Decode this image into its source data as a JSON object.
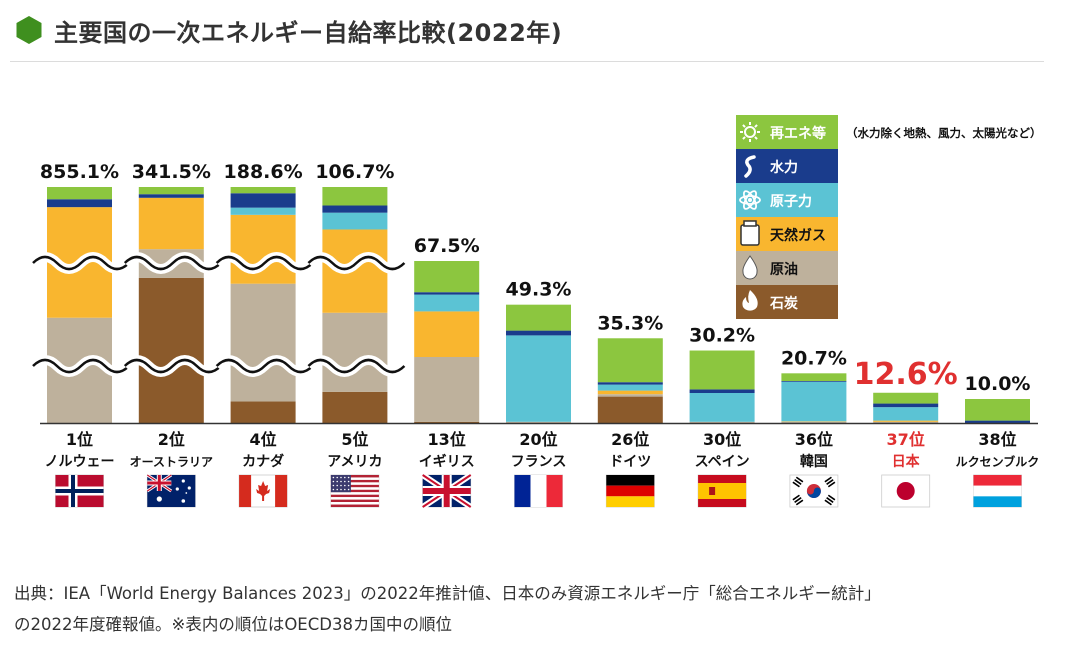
{
  "page": {
    "title": "主要国の一次エネルギー自給率比較(2022年)",
    "source_line1": "出典：IEA「World Energy Balances 2023」の2022年推計値、日本のみ資源エネルギー庁「総合エネルギー統計」",
    "source_line2": "の2022年度確報値。※表内の順位はOECD38カ国中の順位"
  },
  "chart_data": {
    "type": "bar",
    "stacked": true,
    "broken_axis": true,
    "unit": "%",
    "legend_position": "top-right",
    "legend": [
      {
        "key": "renewables",
        "label": "再エネ等",
        "note": "（水力除く地熱、風力、太陽光など）",
        "color": "#8cc63f",
        "icon": "sun-icon"
      },
      {
        "key": "hydro",
        "label": "水力",
        "color": "#1a3c8c",
        "icon": "water-icon"
      },
      {
        "key": "nuclear",
        "label": "原子力",
        "color": "#5bc3d4",
        "icon": "atom-icon"
      },
      {
        "key": "gas",
        "label": "天然ガス",
        "color": "#f9b62f",
        "icon": "gas-tank-icon"
      },
      {
        "key": "oil",
        "label": "原油",
        "color": "#beb19c",
        "icon": "oil-drop-icon"
      },
      {
        "key": "coal",
        "label": "石炭",
        "color": "#8b5a2b",
        "icon": "flame-icon"
      }
    ],
    "categories": [
      {
        "rank": "1位",
        "country": "ノルウェー",
        "total": 855.1,
        "total_label": "855.1%",
        "flag": "norway",
        "highlight": false,
        "components": {
          "coal": 0,
          "oil": 400,
          "gas": 420,
          "nuclear": 0,
          "hydro": 30,
          "renewables": 5.1
        }
      },
      {
        "rank": "2位",
        "country": "オーストラリア",
        "total": 341.5,
        "total_label": "341.5%",
        "flag": "australia",
        "highlight": false,
        "components": {
          "coal": 240,
          "oil": 12,
          "gas": 85,
          "nuclear": 0,
          "hydro": 1.5,
          "renewables": 3
        }
      },
      {
        "rank": "4位",
        "country": "カナダ",
        "total": 188.6,
        "total_label": "188.6%",
        "flag": "canada",
        "highlight": false,
        "components": {
          "coal": 9,
          "oil": 106,
          "gas": 62,
          "nuclear": 3,
          "hydro": 6,
          "renewables": 2.6
        }
      },
      {
        "rank": "5位",
        "country": "アメリカ",
        "total": 106.7,
        "total_label": "106.7%",
        "flag": "usa",
        "highlight": false,
        "components": {
          "coal": 13,
          "oil": 37,
          "gas": 39,
          "nuclear": 7,
          "hydro": 3,
          "renewables": 7.7
        }
      },
      {
        "rank": "13位",
        "country": "イギリス",
        "total": 67.5,
        "total_label": "67.5%",
        "flag": "uk",
        "highlight": false,
        "components": {
          "coal": 0.5,
          "oil": 27,
          "gas": 19,
          "nuclear": 7,
          "hydro": 1,
          "renewables": 13
        }
      },
      {
        "rank": "20位",
        "country": "フランス",
        "total": 49.3,
        "total_label": "49.3%",
        "flag": "france",
        "highlight": false,
        "components": {
          "coal": 0,
          "oil": 0.5,
          "gas": 0,
          "nuclear": 36,
          "hydro": 2,
          "renewables": 10.8
        }
      },
      {
        "rank": "26位",
        "country": "ドイツ",
        "total": 35.3,
        "total_label": "35.3%",
        "flag": "germany",
        "highlight": false,
        "components": {
          "coal": 11,
          "oil": 1,
          "gas": 1.5,
          "nuclear": 2.5,
          "hydro": 1,
          "renewables": 18.3
        }
      },
      {
        "rank": "30位",
        "country": "スペイン",
        "total": 30.2,
        "total_label": "30.2%",
        "flag": "spain",
        "highlight": false,
        "components": {
          "coal": 0,
          "oil": 0.5,
          "gas": 0,
          "nuclear": 12,
          "hydro": 1.5,
          "renewables": 16.2
        }
      },
      {
        "rank": "36位",
        "country": "韓国",
        "total": 20.7,
        "total_label": "20.7%",
        "flag": "korea",
        "highlight": false,
        "components": {
          "coal": 0,
          "oil": 0.5,
          "gas": 0.2,
          "nuclear": 16.5,
          "hydro": 0.3,
          "renewables": 3.2
        }
      },
      {
        "rank": "37位",
        "country": "日本",
        "total": 12.6,
        "total_label": "12.6%",
        "flag": "japan",
        "highlight": true,
        "components": {
          "coal": 0,
          "oil": 0.5,
          "gas": 0.5,
          "nuclear": 5.6,
          "hydro": 1.5,
          "renewables": 4.5
        }
      },
      {
        "rank": "38位",
        "country": "ルクセンブルク",
        "total": 10.0,
        "total_label": "10.0%",
        "flag": "luxembourg",
        "highlight": false,
        "components": {
          "coal": 0,
          "oil": 0,
          "gas": 0,
          "nuclear": 0,
          "hydro": 1,
          "renewables": 9
        }
      }
    ],
    "colors": {
      "highlight_text": "#e03030",
      "baseline": "#333333"
    }
  }
}
